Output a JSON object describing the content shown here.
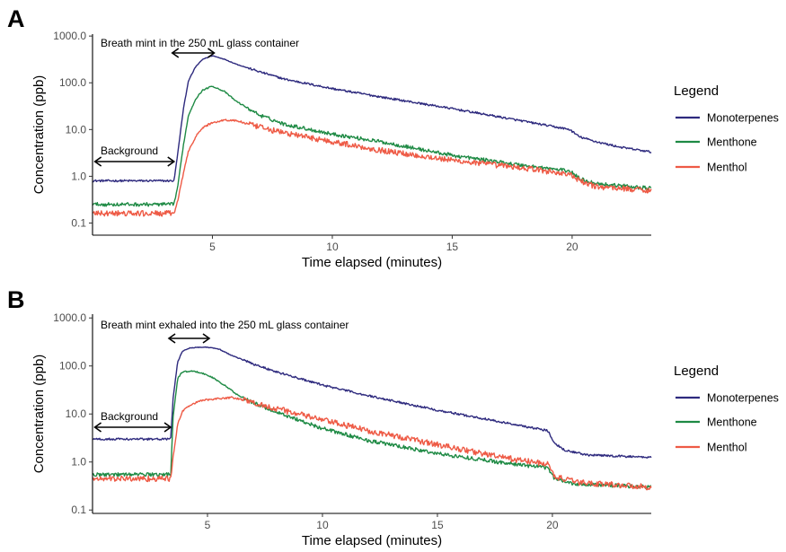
{
  "chart_data": [
    {
      "panel": "A",
      "type": "line",
      "xlabel": "Time elapsed (minutes)",
      "ylabel": "Concentration (ppb)",
      "xlim": [
        0,
        23.3
      ],
      "ylim": [
        0.055,
        1100
      ],
      "yscale": "log",
      "xticks": [
        5,
        10,
        15,
        20
      ],
      "xtick_labels": [
        "5",
        "10",
        "15",
        "20"
      ],
      "yticks": [
        0.1,
        1,
        10,
        100,
        1000
      ],
      "ytick_labels": [
        "0.1",
        "1.0",
        "10.0",
        "100.0",
        "1000.0"
      ],
      "grid": false,
      "annotations": [
        {
          "text": "Breath mint in the 250 mL glass container",
          "arrow_x": [
            3.4,
            5.0
          ]
        },
        {
          "text": "Background",
          "arrow_x": [
            0.1,
            3.4
          ]
        }
      ],
      "legend": {
        "title": "Legend",
        "position": "right"
      },
      "series": [
        {
          "name": "Monoterpenes",
          "color": "#2e2a7e",
          "x": [
            0,
            3.4,
            3.55,
            3.8,
            4.0,
            4.3,
            4.6,
            5.0,
            5.5,
            6.0,
            7.0,
            8.0,
            10.0,
            12.0,
            15.0,
            18.0,
            19.9,
            20.3,
            21.0,
            22.0,
            23.3
          ],
          "y": [
            0.8,
            0.8,
            3.0,
            30,
            110,
            220,
            320,
            380,
            320,
            250,
            170,
            120,
            75,
            50,
            28,
            15,
            10,
            7,
            5.5,
            4.2,
            3.3
          ]
        },
        {
          "name": "Menthone",
          "color": "#1e8a44",
          "x": [
            0,
            3.4,
            3.55,
            3.8,
            4.0,
            4.3,
            4.6,
            5.0,
            5.5,
            6.0,
            7.0,
            8.0,
            10.0,
            12.0,
            15.0,
            18.0,
            19.9,
            20.3,
            21.0,
            23.3
          ],
          "y": [
            0.25,
            0.25,
            0.6,
            5,
            20,
            45,
            70,
            85,
            65,
            40,
            20,
            13,
            8,
            5.5,
            2.8,
            1.7,
            1.3,
            0.9,
            0.7,
            0.55
          ]
        },
        {
          "name": "Menthol",
          "color": "#ee5a45",
          "x": [
            0,
            3.4,
            3.55,
            3.8,
            4.0,
            4.3,
            4.6,
            5.0,
            5.5,
            6.0,
            7.0,
            8.0,
            10.0,
            12.0,
            15.0,
            18.0,
            19.9,
            20.3,
            21.0,
            23.3
          ],
          "y": [
            0.16,
            0.16,
            0.3,
            1.2,
            3.5,
            7,
            11,
            14,
            16,
            15.5,
            11,
            8.5,
            5.5,
            3.6,
            2.2,
            1.5,
            1.1,
            0.8,
            0.6,
            0.5
          ]
        }
      ]
    },
    {
      "panel": "B",
      "type": "line",
      "xlabel": "Time elapsed (minutes)",
      "ylabel": "Concentration (ppb)",
      "xlim": [
        0,
        24.3
      ],
      "ylim": [
        0.085,
        1200
      ],
      "yscale": "log",
      "xticks": [
        5,
        10,
        15,
        20
      ],
      "xtick_labels": [
        "5",
        "10",
        "15",
        "20"
      ],
      "yticks": [
        0.1,
        1,
        10,
        100,
        1000
      ],
      "ytick_labels": [
        "0.1",
        "1.0",
        "10.0",
        "100.0",
        "1000.0"
      ],
      "grid": false,
      "annotations": [
        {
          "text": "Breath mint exhaled into the 250 mL glass container",
          "arrow_x": [
            3.4,
            5.0
          ]
        },
        {
          "text": "Background",
          "arrow_x": [
            0.1,
            3.4
          ]
        }
      ],
      "legend": {
        "title": "Legend",
        "position": "right"
      },
      "series": [
        {
          "name": "Monoterpenes",
          "color": "#2e2a7e",
          "x": [
            0,
            3.4,
            3.5,
            3.7,
            3.9,
            4.2,
            4.5,
            5.0,
            5.5,
            6.0,
            7.0,
            8.0,
            10.0,
            12.0,
            15.0,
            18.0,
            19.8,
            20.1,
            20.5,
            21.5,
            24.3
          ],
          "y": [
            3.0,
            3.0,
            20,
            120,
            200,
            235,
            245,
            245,
            225,
            170,
            110,
            75,
            40,
            24,
            12,
            6.5,
            4.5,
            2.5,
            1.8,
            1.4,
            1.25
          ]
        },
        {
          "name": "Menthone",
          "color": "#1e8a44",
          "x": [
            0,
            3.4,
            3.5,
            3.7,
            3.9,
            4.3,
            4.7,
            5.2,
            5.8,
            6.3,
            7.0,
            8.0,
            10.0,
            12.0,
            15.0,
            18.0,
            19.8,
            20.1,
            21.0,
            24.3
          ],
          "y": [
            0.55,
            0.55,
            8,
            55,
            75,
            78,
            73,
            58,
            38,
            25,
            17,
            11,
            5.0,
            2.8,
            1.5,
            0.95,
            0.75,
            0.45,
            0.35,
            0.3
          ]
        },
        {
          "name": "Menthol",
          "color": "#ee5a45",
          "x": [
            0,
            3.4,
            3.5,
            3.7,
            3.9,
            4.2,
            4.6,
            5.0,
            5.5,
            6.0,
            6.5,
            7.0,
            8.0,
            10.0,
            12.0,
            15.0,
            18.0,
            19.8,
            20.1,
            21.0,
            24.3
          ],
          "y": [
            0.45,
            0.45,
            1.2,
            6,
            11,
            15,
            18,
            20,
            21,
            22,
            20,
            17,
            13,
            7.5,
            4.5,
            2.3,
            1.2,
            0.9,
            0.5,
            0.38,
            0.3
          ]
        }
      ]
    }
  ]
}
